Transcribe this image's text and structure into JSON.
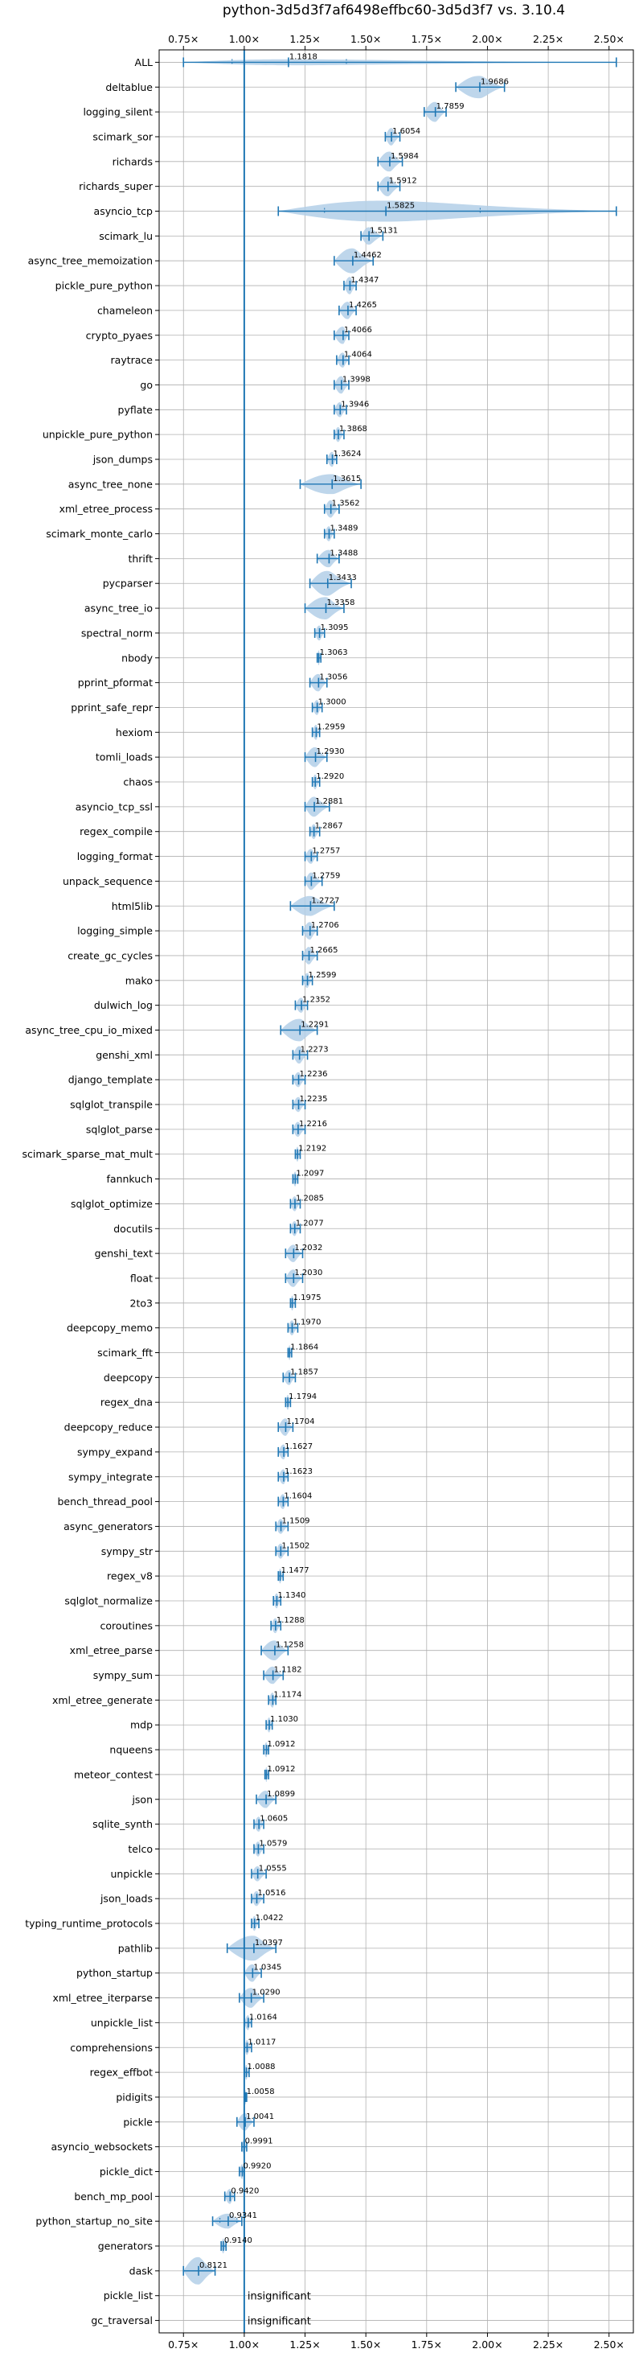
{
  "chart_data": {
    "type": "violin",
    "title": "python-3d5d3f7af6498effbc60-3d5d3f7 vs. 3.10.4",
    "xlabel": "",
    "ylabel": "",
    "xlim": [
      0.65,
      2.6
    ],
    "reference_line": 1.0,
    "x_ticks": [
      0.75,
      1.0,
      1.25,
      1.5,
      1.75,
      2.0,
      2.25,
      2.5
    ],
    "x_tick_labels": [
      "0.75×",
      "1.00×",
      "1.25×",
      "1.50×",
      "1.75×",
      "2.00×",
      "2.25×",
      "2.50×"
    ],
    "grid": true,
    "colors": {
      "violin": "#b3cfe8",
      "line": "#1f77b4",
      "axis": "#000000",
      "grid": "#b0b0b0"
    },
    "insignificant_text": "insignificant",
    "benchmarks": [
      {
        "name": "ALL",
        "value": 1.1818,
        "label": "1.1818",
        "min": 0.75,
        "max": 2.53,
        "q1": 0.95,
        "q3": 1.42,
        "spread": 0.12
      },
      {
        "name": "deltablue",
        "value": 1.9686,
        "label": "1.9686",
        "min": 1.87,
        "max": 2.07,
        "spread": 0.45
      },
      {
        "name": "logging_silent",
        "value": 1.7859,
        "label": "1.7859",
        "min": 1.74,
        "max": 1.83,
        "spread": 0.4
      },
      {
        "name": "scimark_sor",
        "value": 1.6054,
        "label": "1.6054",
        "min": 1.58,
        "max": 1.64,
        "spread": 0.35
      },
      {
        "name": "richards",
        "value": 1.5984,
        "label": "1.5984",
        "min": 1.55,
        "max": 1.65,
        "spread": 0.4
      },
      {
        "name": "richards_super",
        "value": 1.5912,
        "label": "1.5912",
        "min": 1.55,
        "max": 1.64,
        "spread": 0.4
      },
      {
        "name": "asyncio_tcp",
        "value": 1.5825,
        "label": "1.5825",
        "min": 1.14,
        "max": 2.53,
        "q1": 1.33,
        "q3": 1.97,
        "spread": 0.42
      },
      {
        "name": "scimark_lu",
        "value": 1.5131,
        "label": "1.5131",
        "min": 1.48,
        "max": 1.57,
        "spread": 0.35
      },
      {
        "name": "async_tree_memoization",
        "value": 1.4462,
        "label": "1.4462",
        "min": 1.37,
        "max": 1.53,
        "spread": 0.5
      },
      {
        "name": "pickle_pure_python",
        "value": 1.4347,
        "label": "1.4347",
        "min": 1.41,
        "max": 1.46,
        "spread": 0.35
      },
      {
        "name": "chameleon",
        "value": 1.4265,
        "label": "1.4265",
        "min": 1.39,
        "max": 1.46,
        "spread": 0.35
      },
      {
        "name": "crypto_pyaes",
        "value": 1.4066,
        "label": "1.4066",
        "min": 1.37,
        "max": 1.43,
        "spread": 0.35
      },
      {
        "name": "raytrace",
        "value": 1.4064,
        "label": "1.4064",
        "min": 1.38,
        "max": 1.43,
        "spread": 0.3
      },
      {
        "name": "go",
        "value": 1.3998,
        "label": "1.3998",
        "min": 1.37,
        "max": 1.43,
        "spread": 0.35
      },
      {
        "name": "pyflate",
        "value": 1.3946,
        "label": "1.3946",
        "min": 1.37,
        "max": 1.42,
        "spread": 0.3
      },
      {
        "name": "unpickle_pure_python",
        "value": 1.3868,
        "label": "1.3868",
        "min": 1.37,
        "max": 1.41,
        "spread": 0.3
      },
      {
        "name": "json_dumps",
        "value": 1.3624,
        "label": "1.3624",
        "min": 1.34,
        "max": 1.38,
        "spread": 0.3
      },
      {
        "name": "async_tree_none",
        "value": 1.3615,
        "label": "1.3615",
        "min": 1.23,
        "max": 1.48,
        "spread": 0.4
      },
      {
        "name": "xml_etree_process",
        "value": 1.3562,
        "label": "1.3562",
        "min": 1.33,
        "max": 1.39,
        "spread": 0.35
      },
      {
        "name": "scimark_monte_carlo",
        "value": 1.3489,
        "label": "1.3489",
        "min": 1.33,
        "max": 1.37,
        "spread": 0.3
      },
      {
        "name": "thrift",
        "value": 1.3488,
        "label": "1.3488",
        "min": 1.3,
        "max": 1.39,
        "spread": 0.35
      },
      {
        "name": "pycparser",
        "value": 1.3433,
        "label": "1.3433",
        "min": 1.27,
        "max": 1.44,
        "spread": 0.5
      },
      {
        "name": "async_tree_io",
        "value": 1.3358,
        "label": "1.3358",
        "min": 1.25,
        "max": 1.41,
        "spread": 0.45
      },
      {
        "name": "spectral_norm",
        "value": 1.3095,
        "label": "1.3095",
        "min": 1.29,
        "max": 1.33,
        "spread": 0.3
      },
      {
        "name": "nbody",
        "value": 1.3063,
        "label": "1.3063",
        "min": 1.3,
        "max": 1.315,
        "spread": 0.3
      },
      {
        "name": "pprint_pformat",
        "value": 1.3056,
        "label": "1.3056",
        "min": 1.27,
        "max": 1.34,
        "spread": 0.35
      },
      {
        "name": "pprint_safe_repr",
        "value": 1.3,
        "label": "1.3000",
        "min": 1.28,
        "max": 1.32,
        "spread": 0.3
      },
      {
        "name": "hexiom",
        "value": 1.2959,
        "label": "1.2959",
        "min": 1.28,
        "max": 1.31,
        "spread": 0.3
      },
      {
        "name": "tomli_loads",
        "value": 1.293,
        "label": "1.2930",
        "min": 1.25,
        "max": 1.34,
        "spread": 0.4
      },
      {
        "name": "chaos",
        "value": 1.292,
        "label": "1.2920",
        "min": 1.28,
        "max": 1.31,
        "spread": 0.3
      },
      {
        "name": "asyncio_tcp_ssl",
        "value": 1.2881,
        "label": "1.2881",
        "min": 1.25,
        "max": 1.35,
        "spread": 0.4
      },
      {
        "name": "regex_compile",
        "value": 1.2867,
        "label": "1.2867",
        "min": 1.27,
        "max": 1.31,
        "spread": 0.3
      },
      {
        "name": "logging_format",
        "value": 1.2757,
        "label": "1.2757",
        "min": 1.25,
        "max": 1.3,
        "spread": 0.3
      },
      {
        "name": "unpack_sequence",
        "value": 1.2759,
        "label": "1.2759",
        "min": 1.25,
        "max": 1.32,
        "spread": 0.35
      },
      {
        "name": "html5lib",
        "value": 1.2727,
        "label": "1.2727",
        "min": 1.19,
        "max": 1.37,
        "spread": 0.4
      },
      {
        "name": "logging_simple",
        "value": 1.2706,
        "label": "1.2706",
        "min": 1.24,
        "max": 1.3,
        "spread": 0.35
      },
      {
        "name": "create_gc_cycles",
        "value": 1.2665,
        "label": "1.2665",
        "min": 1.24,
        "max": 1.3,
        "spread": 0.35
      },
      {
        "name": "mako",
        "value": 1.2599,
        "label": "1.2599",
        "min": 1.24,
        "max": 1.28,
        "spread": 0.3
      },
      {
        "name": "dulwich_log",
        "value": 1.2352,
        "label": "1.2352",
        "min": 1.21,
        "max": 1.26,
        "spread": 0.3
      },
      {
        "name": "async_tree_cpu_io_mixed",
        "value": 1.2291,
        "label": "1.2291",
        "min": 1.15,
        "max": 1.3,
        "spread": 0.45
      },
      {
        "name": "genshi_xml",
        "value": 1.2273,
        "label": "1.2273",
        "min": 1.2,
        "max": 1.26,
        "spread": 0.35
      },
      {
        "name": "django_template",
        "value": 1.2236,
        "label": "1.2236",
        "min": 1.2,
        "max": 1.25,
        "spread": 0.3
      },
      {
        "name": "sqlglot_transpile",
        "value": 1.2235,
        "label": "1.2235",
        "min": 1.2,
        "max": 1.25,
        "spread": 0.3
      },
      {
        "name": "sqlglot_parse",
        "value": 1.2216,
        "label": "1.2216",
        "min": 1.2,
        "max": 1.25,
        "spread": 0.3
      },
      {
        "name": "scimark_sparse_mat_mult",
        "value": 1.2192,
        "label": "1.2192",
        "min": 1.21,
        "max": 1.23,
        "spread": 0.3
      },
      {
        "name": "fannkuch",
        "value": 1.2097,
        "label": "1.2097",
        "min": 1.2,
        "max": 1.22,
        "spread": 0.3
      },
      {
        "name": "sqlglot_optimize",
        "value": 1.2085,
        "label": "1.2085",
        "min": 1.19,
        "max": 1.23,
        "spread": 0.3
      },
      {
        "name": "docutils",
        "value": 1.2077,
        "label": "1.2077",
        "min": 1.19,
        "max": 1.23,
        "spread": 0.3
      },
      {
        "name": "genshi_text",
        "value": 1.2032,
        "label": "1.2032",
        "min": 1.17,
        "max": 1.24,
        "spread": 0.35
      },
      {
        "name": "float",
        "value": 1.203,
        "label": "1.2030",
        "min": 1.17,
        "max": 1.24,
        "spread": 0.35
      },
      {
        "name": "2to3",
        "value": 1.1975,
        "label": "1.1975",
        "min": 1.19,
        "max": 1.21,
        "spread": 0.3
      },
      {
        "name": "deepcopy_memo",
        "value": 1.197,
        "label": "1.1970",
        "min": 1.18,
        "max": 1.22,
        "spread": 0.3
      },
      {
        "name": "scimark_fft",
        "value": 1.1864,
        "label": "1.1864",
        "min": 1.18,
        "max": 1.195,
        "spread": 0.3
      },
      {
        "name": "deepcopy",
        "value": 1.1857,
        "label": "1.1857",
        "min": 1.16,
        "max": 1.21,
        "spread": 0.3
      },
      {
        "name": "regex_dna",
        "value": 1.1794,
        "label": "1.1794",
        "min": 1.17,
        "max": 1.19,
        "spread": 0.3
      },
      {
        "name": "deepcopy_reduce",
        "value": 1.1704,
        "label": "1.1704",
        "min": 1.14,
        "max": 1.2,
        "spread": 0.35
      },
      {
        "name": "sympy_expand",
        "value": 1.1627,
        "label": "1.1627",
        "min": 1.14,
        "max": 1.18,
        "spread": 0.3
      },
      {
        "name": "sympy_integrate",
        "value": 1.1623,
        "label": "1.1623",
        "min": 1.14,
        "max": 1.18,
        "spread": 0.3
      },
      {
        "name": "bench_thread_pool",
        "value": 1.1604,
        "label": "1.1604",
        "min": 1.14,
        "max": 1.18,
        "spread": 0.3
      },
      {
        "name": "async_generators",
        "value": 1.1509,
        "label": "1.1509",
        "min": 1.13,
        "max": 1.18,
        "spread": 0.3
      },
      {
        "name": "sympy_str",
        "value": 1.1502,
        "label": "1.1502",
        "min": 1.13,
        "max": 1.18,
        "spread": 0.3
      },
      {
        "name": "regex_v8",
        "value": 1.1477,
        "label": "1.1477",
        "min": 1.14,
        "max": 1.16,
        "spread": 0.3
      },
      {
        "name": "sqlglot_normalize",
        "value": 1.134,
        "label": "1.1340",
        "min": 1.12,
        "max": 1.15,
        "spread": 0.3
      },
      {
        "name": "coroutines",
        "value": 1.1288,
        "label": "1.1288",
        "min": 1.11,
        "max": 1.15,
        "spread": 0.3
      },
      {
        "name": "xml_etree_parse",
        "value": 1.1258,
        "label": "1.1258",
        "min": 1.07,
        "max": 1.18,
        "spread": 0.4
      },
      {
        "name": "sympy_sum",
        "value": 1.1182,
        "label": "1.1182",
        "min": 1.08,
        "max": 1.16,
        "spread": 0.35
      },
      {
        "name": "xml_etree_generate",
        "value": 1.1174,
        "label": "1.1174",
        "min": 1.1,
        "max": 1.13,
        "spread": 0.3
      },
      {
        "name": "mdp",
        "value": 1.103,
        "label": "1.1030",
        "min": 1.09,
        "max": 1.115,
        "spread": 0.3
      },
      {
        "name": "nqueens",
        "value": 1.0912,
        "label": "1.0912",
        "min": 1.08,
        "max": 1.1,
        "spread": 0.3
      },
      {
        "name": "meteor_contest",
        "value": 1.0912,
        "label": "1.0912",
        "min": 1.085,
        "max": 1.1,
        "spread": 0.3
      },
      {
        "name": "json",
        "value": 1.0899,
        "label": "1.0899",
        "min": 1.05,
        "max": 1.13,
        "spread": 0.35
      },
      {
        "name": "sqlite_synth",
        "value": 1.0605,
        "label": "1.0605",
        "min": 1.04,
        "max": 1.08,
        "spread": 0.3
      },
      {
        "name": "telco",
        "value": 1.0579,
        "label": "1.0579",
        "min": 1.04,
        "max": 1.08,
        "spread": 0.3
      },
      {
        "name": "unpickle",
        "value": 1.0555,
        "label": "1.0555",
        "min": 1.03,
        "max": 1.09,
        "spread": 0.3
      },
      {
        "name": "json_loads",
        "value": 1.0516,
        "label": "1.0516",
        "min": 1.03,
        "max": 1.08,
        "spread": 0.3
      },
      {
        "name": "typing_runtime_protocols",
        "value": 1.0422,
        "label": "1.0422",
        "min": 1.03,
        "max": 1.06,
        "spread": 0.3
      },
      {
        "name": "pathlib",
        "value": 1.0397,
        "label": "1.0397",
        "min": 0.93,
        "max": 1.13,
        "spread": 0.5
      },
      {
        "name": "python_startup",
        "value": 1.0345,
        "label": "1.0345",
        "min": 1.0,
        "max": 1.07,
        "spread": 0.35
      },
      {
        "name": "xml_etree_iterparse",
        "value": 1.029,
        "label": "1.0290",
        "min": 0.98,
        "max": 1.08,
        "spread": 0.4
      },
      {
        "name": "unpickle_list",
        "value": 1.0164,
        "label": "1.0164",
        "min": 1.0,
        "max": 1.03,
        "spread": 0.3
      },
      {
        "name": "comprehensions",
        "value": 1.0117,
        "label": "1.0117",
        "min": 1.0,
        "max": 1.03,
        "spread": 0.3
      },
      {
        "name": "regex_effbot",
        "value": 1.0088,
        "label": "1.0088",
        "min": 1.0,
        "max": 1.02,
        "spread": 0.3
      },
      {
        "name": "pidigits",
        "value": 1.0058,
        "label": "1.0058",
        "min": 1.002,
        "max": 1.01,
        "spread": 0.3
      },
      {
        "name": "pickle",
        "value": 1.0041,
        "label": "1.0041",
        "min": 0.97,
        "max": 1.04,
        "spread": 0.35
      },
      {
        "name": "asyncio_websockets",
        "value": 0.9991,
        "label": "0.9991",
        "min": 0.99,
        "max": 1.01,
        "spread": 0.3
      },
      {
        "name": "pickle_dict",
        "value": 0.992,
        "label": "0.9920",
        "min": 0.98,
        "max": 1.0,
        "spread": 0.3
      },
      {
        "name": "bench_mp_pool",
        "value": 0.942,
        "label": "0.9420",
        "min": 0.92,
        "max": 0.96,
        "spread": 0.3
      },
      {
        "name": "python_startup_no_site",
        "value": 0.9341,
        "label": "0.9341",
        "min": 0.87,
        "max": 0.99,
        "q1": 0.9,
        "q3": 0.97,
        "spread": 0.3
      },
      {
        "name": "generators",
        "value": 0.914,
        "label": "0.9140",
        "min": 0.905,
        "max": 0.925,
        "spread": 0.3
      },
      {
        "name": "dask",
        "value": 0.8121,
        "label": "0.8121",
        "min": 0.75,
        "max": 0.88,
        "spread": 0.55
      },
      {
        "name": "pickle_list",
        "insignificant": true
      },
      {
        "name": "gc_traversal",
        "insignificant": true
      }
    ]
  }
}
